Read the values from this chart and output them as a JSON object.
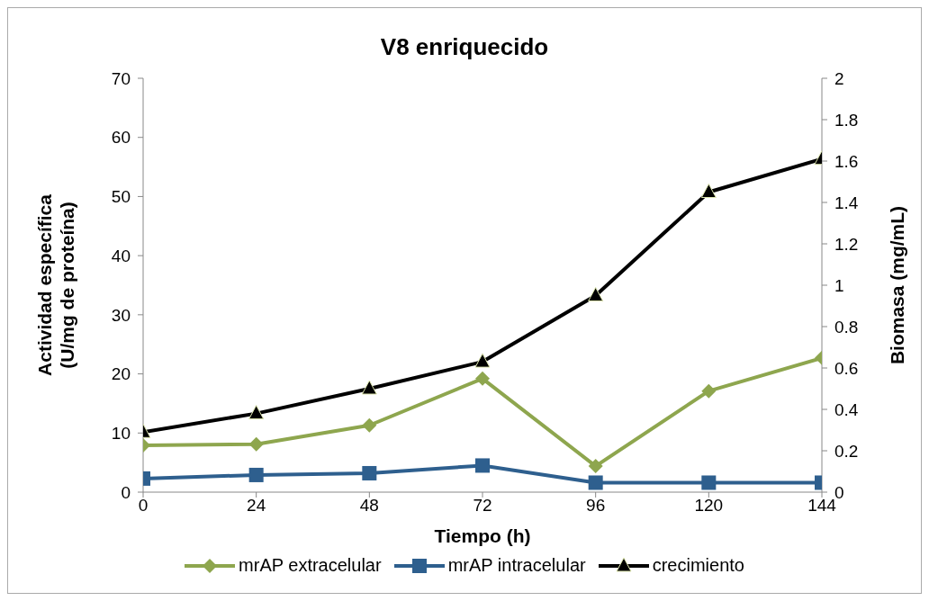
{
  "chart_data": {
    "type": "line",
    "title": "V8 enriquecido",
    "xlabel": "Tiempo (h)",
    "ylabel": "Actividad específica\n(U/mg de proteína)",
    "y2label": "Biomasa (mg/mL)",
    "x": [
      0,
      24,
      48,
      72,
      96,
      120,
      144
    ],
    "xlim": [
      0,
      144
    ],
    "xticks": [
      0,
      24,
      48,
      72,
      96,
      120,
      144
    ],
    "ylim": [
      0,
      70
    ],
    "yticks": [
      0,
      10,
      20,
      30,
      40,
      50,
      60,
      70
    ],
    "y2lim": [
      0,
      2
    ],
    "y2ticks": [
      0,
      0.2,
      0.4,
      0.6,
      0.8,
      1,
      1.2,
      1.4,
      1.6,
      1.8,
      2
    ],
    "legend": "bottom",
    "series": [
      {
        "name": "mrAP extracelular",
        "color": "#8ea64e",
        "marker": "diamond",
        "values": [
          7.9,
          8.1,
          11.3,
          19.2,
          4.4,
          17.1,
          22.7
        ]
      },
      {
        "name": "mrAP intracelular",
        "color": "#2e5f8e",
        "marker": "square",
        "values": [
          2.3,
          2.9,
          3.2,
          4.5,
          1.6,
          1.6,
          1.6
        ]
      },
      {
        "name": "crecimiento",
        "color": "#000000",
        "marker": "triangle",
        "axis": "y2",
        "values": [
          0.29,
          0.38,
          0.5,
          0.63,
          0.95,
          1.45,
          1.61
        ]
      }
    ]
  }
}
